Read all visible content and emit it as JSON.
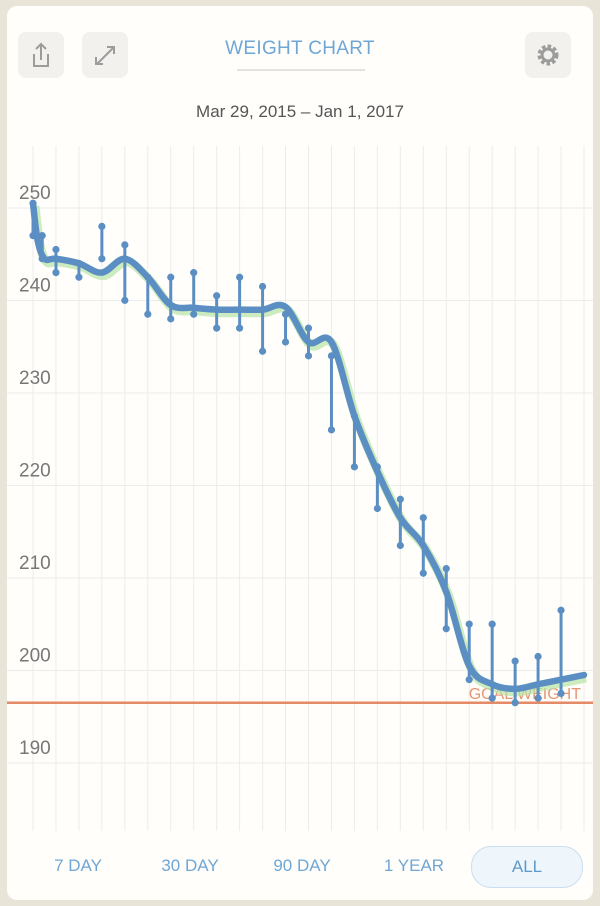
{
  "header": {
    "title": "WEIGHT CHART",
    "date_range": "Mar 29, 2015 – Jan 1, 2017",
    "icons": [
      "share-icon",
      "expand-icon",
      "gear-icon"
    ]
  },
  "periods": [
    {
      "label": "7 DAY",
      "active": false
    },
    {
      "label": "30 DAY",
      "active": false
    },
    {
      "label": "90 DAY",
      "active": false
    },
    {
      "label": "1 YEAR",
      "active": false
    },
    {
      "label": "ALL",
      "active": true
    }
  ],
  "colors": {
    "line": "#5b8fc3",
    "goal": "#e58a66",
    "smooth": "#b6e3a4",
    "grid": "#ececec"
  },
  "chart_data": {
    "type": "line",
    "y_ticks": [
      190,
      200,
      210,
      220,
      230,
      240,
      250
    ],
    "ylim": [
      185,
      258
    ],
    "x_count": 25,
    "goal": {
      "label": "GOAL WEIGHT",
      "value": 195
    },
    "series": [
      {
        "x": [
          0,
          0.2,
          0.5,
          1,
          2,
          3,
          4,
          5,
          6,
          7,
          8,
          9,
          10,
          11,
          12,
          13,
          14,
          15,
          16,
          17,
          18,
          19,
          20,
          21,
          22,
          23,
          24
        ],
        "values": [
          249,
          245,
          243,
          243,
          242.5,
          241.5,
          243,
          241,
          238,
          237.7,
          237.5,
          237.5,
          237.5,
          237.8,
          234,
          234,
          226,
          220,
          215,
          212,
          207,
          199,
          197,
          196.5,
          197,
          197.5,
          198
        ]
      }
    ],
    "ranges": [
      {
        "x": 0,
        "high": 249,
        "low": 245.5
      },
      {
        "x": 0.4,
        "high": 245.5,
        "low": 243
      },
      {
        "x": 1,
        "high": 244,
        "low": 241.5
      },
      {
        "x": 2,
        "high": 242.5,
        "low": 241
      },
      {
        "x": 3,
        "high": 246.5,
        "low": 243
      },
      {
        "x": 4,
        "high": 244.5,
        "low": 238.5
      },
      {
        "x": 5,
        "high": 241,
        "low": 237
      },
      {
        "x": 6,
        "high": 241,
        "low": 236.5
      },
      {
        "x": 7,
        "high": 241.5,
        "low": 237
      },
      {
        "x": 8,
        "high": 239,
        "low": 235.5
      },
      {
        "x": 9,
        "high": 241,
        "low": 235.5
      },
      {
        "x": 10,
        "high": 240,
        "low": 233
      },
      {
        "x": 11,
        "high": 237,
        "low": 234
      },
      {
        "x": 12,
        "high": 235.5,
        "low": 232.5
      },
      {
        "x": 13,
        "high": 232.5,
        "low": 224.5
      },
      {
        "x": 14,
        "high": 226,
        "low": 220.5
      },
      {
        "x": 15,
        "high": 220.5,
        "low": 216
      },
      {
        "x": 16,
        "high": 217,
        "low": 212
      },
      {
        "x": 17,
        "high": 215,
        "low": 209
      },
      {
        "x": 18,
        "high": 209.5,
        "low": 203
      },
      {
        "x": 19,
        "high": 203.5,
        "low": 197.5
      },
      {
        "x": 20,
        "high": 203.5,
        "low": 195.5
      },
      {
        "x": 21,
        "high": 199.5,
        "low": 195
      },
      {
        "x": 22,
        "high": 200,
        "low": 195.5
      },
      {
        "x": 23,
        "high": 205,
        "low": 196
      }
    ]
  }
}
